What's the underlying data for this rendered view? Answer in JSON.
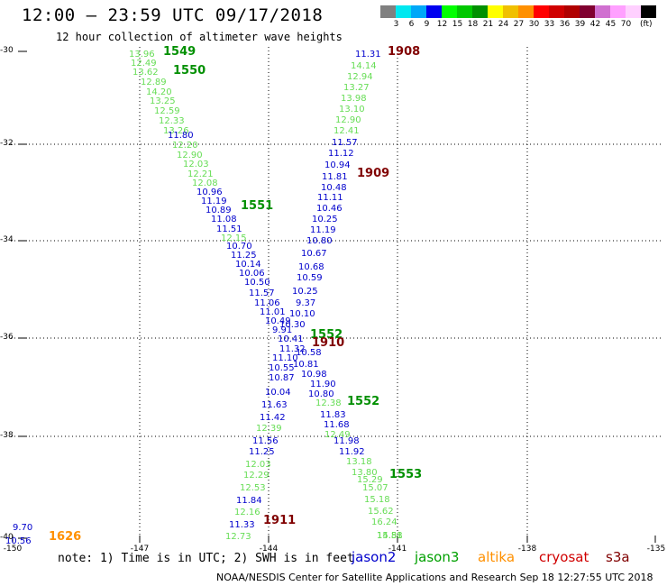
{
  "header": {
    "title": "12:00 – 23:59 UTC 09/17/2018",
    "subtitle": "12 hour collection of altimeter wave heights"
  },
  "color_scale": {
    "colors": [
      "#808080",
      "#00e8f0",
      "#00a8f8",
      "#0000f0",
      "#00ff00",
      "#00c800",
      "#009000",
      "#ffff00",
      "#f0c000",
      "#ff9000",
      "#ff0000",
      "#d00000",
      "#b00000",
      "#800030",
      "#d070d0",
      "#ffa0ff",
      "#ffd0ff",
      "#000000"
    ],
    "labels": [
      "3",
      "6",
      "9",
      "12",
      "15",
      "18",
      "21",
      "24",
      "27",
      "30",
      "33",
      "36",
      "39",
      "42",
      "45",
      "70"
    ],
    "unit": "(ft)"
  },
  "axes": {
    "lat_labels": [
      "-30",
      "-32",
      "-34",
      "-36",
      "-38",
      "-40"
    ],
    "lon_labels": [
      "-150",
      "-147",
      "-144",
      "-141",
      "-138",
      "-135"
    ]
  },
  "observations": [
    {
      "v": "13.96",
      "c": "#66dd55"
    },
    {
      "v": "12.49",
      "c": "#66dd55"
    },
    {
      "v": "13.62",
      "c": "#66dd55"
    },
    {
      "v": "12.89",
      "c": "#66dd55"
    },
    {
      "v": "14.20",
      "c": "#66dd55"
    },
    {
      "v": "13.25",
      "c": "#66dd55"
    },
    {
      "v": "12.59",
      "c": "#66dd55"
    },
    {
      "v": "12.33",
      "c": "#66dd55"
    },
    {
      "v": "13.26",
      "c": "#66dd55"
    },
    {
      "v": "11.80",
      "c": "#0000cc"
    },
    {
      "v": "12.20",
      "c": "#66dd55"
    },
    {
      "v": "12.90",
      "c": "#66dd55"
    },
    {
      "v": "12.03",
      "c": "#66dd55"
    },
    {
      "v": "12.21",
      "c": "#66dd55"
    },
    {
      "v": "12.08",
      "c": "#66dd55"
    },
    {
      "v": "10.96",
      "c": "#0000cc"
    },
    {
      "v": "11.19",
      "c": "#0000cc"
    },
    {
      "v": "10.89",
      "c": "#0000cc"
    },
    {
      "v": "11.08",
      "c": "#0000cc"
    },
    {
      "v": "11.51",
      "c": "#0000cc"
    },
    {
      "v": "12.15",
      "c": "#66dd55"
    },
    {
      "v": "10.70",
      "c": "#0000cc"
    },
    {
      "v": "11.25",
      "c": "#0000cc"
    },
    {
      "v": "10.14",
      "c": "#0000cc"
    },
    {
      "v": "10.06",
      "c": "#0000cc"
    },
    {
      "v": "10.50",
      "c": "#0000cc"
    },
    {
      "v": "11.57",
      "c": "#0000cc"
    },
    {
      "v": "11.06",
      "c": "#0000cc"
    },
    {
      "v": "11.01",
      "c": "#0000cc"
    },
    {
      "v": "10.49",
      "c": "#0000cc"
    },
    {
      "v": "9.91",
      "c": "#0000cc"
    },
    {
      "v": "10.41",
      "c": "#0000cc"
    },
    {
      "v": "11.32",
      "c": "#0000cc"
    },
    {
      "v": "11.10",
      "c": "#0000cc"
    },
    {
      "v": "10.55",
      "c": "#0000cc"
    },
    {
      "v": "10.87",
      "c": "#0000cc"
    },
    {
      "v": "10.04",
      "c": "#0000cc"
    },
    {
      "v": "11.63",
      "c": "#0000cc"
    },
    {
      "v": "11.42",
      "c": "#0000cc"
    },
    {
      "v": "12.39",
      "c": "#66dd55"
    },
    {
      "v": "11.56",
      "c": "#0000cc"
    },
    {
      "v": "11.25",
      "c": "#0000cc"
    },
    {
      "v": "12.03",
      "c": "#66dd55"
    },
    {
      "v": "12.29",
      "c": "#66dd55"
    },
    {
      "v": "12.53",
      "c": "#66dd55"
    },
    {
      "v": "11.84",
      "c": "#0000cc"
    },
    {
      "v": "12.16",
      "c": "#66dd55"
    },
    {
      "v": "11.33",
      "c": "#0000cc"
    },
    {
      "v": "12.73",
      "c": "#66dd55"
    },
    {
      "v": "9.70",
      "c": "#0000cc"
    },
    {
      "v": "10.56",
      "c": "#0000cc"
    },
    {
      "v": "11.31",
      "c": "#0000cc"
    },
    {
      "v": "14.14",
      "c": "#66dd55"
    },
    {
      "v": "12.94",
      "c": "#66dd55"
    },
    {
      "v": "13.27",
      "c": "#66dd55"
    },
    {
      "v": "13.98",
      "c": "#66dd55"
    },
    {
      "v": "13.10",
      "c": "#66dd55"
    },
    {
      "v": "12.90",
      "c": "#66dd55"
    },
    {
      "v": "12.41",
      "c": "#66dd55"
    },
    {
      "v": "11.57",
      "c": "#0000cc"
    },
    {
      "v": "11.12",
      "c": "#0000cc"
    },
    {
      "v": "10.94",
      "c": "#0000cc"
    },
    {
      "v": "11.81",
      "c": "#0000cc"
    },
    {
      "v": "10.48",
      "c": "#0000cc"
    },
    {
      "v": "11.11",
      "c": "#0000cc"
    },
    {
      "v": "10.46",
      "c": "#0000cc"
    },
    {
      "v": "10.25",
      "c": "#0000cc"
    },
    {
      "v": "11.19",
      "c": "#0000cc"
    },
    {
      "v": "10.80",
      "c": "#0000cc"
    },
    {
      "v": "10.67",
      "c": "#0000cc"
    },
    {
      "v": "10.68",
      "c": "#0000cc"
    },
    {
      "v": "10.59",
      "c": "#0000cc"
    },
    {
      "v": "10.25",
      "c": "#0000cc"
    },
    {
      "v": "9.37",
      "c": "#0000cc"
    },
    {
      "v": "10.10",
      "c": "#0000cc"
    },
    {
      "v": "10.30",
      "c": "#0000cc"
    },
    {
      "v": "10.58",
      "c": "#0000cc"
    },
    {
      "v": "10.81",
      "c": "#0000cc"
    },
    {
      "v": "10.98",
      "c": "#0000cc"
    },
    {
      "v": "11.90",
      "c": "#0000cc"
    },
    {
      "v": "10.80",
      "c": "#0000cc"
    },
    {
      "v": "12.38",
      "c": "#66dd55"
    },
    {
      "v": "11.83",
      "c": "#0000cc"
    },
    {
      "v": "11.68",
      "c": "#0000cc"
    },
    {
      "v": "12.49",
      "c": "#66dd55"
    },
    {
      "v": "11.98",
      "c": "#0000cc"
    },
    {
      "v": "11.92",
      "c": "#0000cc"
    },
    {
      "v": "13.18",
      "c": "#66dd55"
    },
    {
      "v": "13.80",
      "c": "#66dd55"
    },
    {
      "v": "15.29",
      "c": "#66dd55"
    },
    {
      "v": "15.07",
      "c": "#66dd55"
    },
    {
      "v": "15.18",
      "c": "#66dd55"
    },
    {
      "v": "15.62",
      "c": "#66dd55"
    },
    {
      "v": "16.24",
      "c": "#66dd55"
    },
    {
      "v": "15.51",
      "c": "#66dd55"
    },
    {
      "v": "14.88",
      "c": "#66dd55"
    }
  ],
  "pass_labels": [
    {
      "t": "1549",
      "c": "#009000"
    },
    {
      "t": "1550",
      "c": "#009000"
    },
    {
      "t": "1551",
      "c": "#009000"
    },
    {
      "t": "1552",
      "c": "#009000"
    },
    {
      "t": "1552",
      "c": "#009000"
    },
    {
      "t": "1553",
      "c": "#009000"
    },
    {
      "t": "1908",
      "c": "#800000"
    },
    {
      "t": "1909",
      "c": "#800000"
    },
    {
      "t": "1910",
      "c": "#800000"
    },
    {
      "t": "1911",
      "c": "#800000"
    },
    {
      "t": "1626",
      "c": "#ff9000"
    }
  ],
  "footer": {
    "note": "note: 1) Time is in UTC; 2) SWH is in feet",
    "satellites": [
      {
        "name": "jason2",
        "color": "#0000cc"
      },
      {
        "name": "jason3",
        "color": "#00a000"
      },
      {
        "name": "altika",
        "color": "#ff9000"
      },
      {
        "name": "cryosat",
        "color": "#d00000"
      },
      {
        "name": "s3a",
        "color": "#800000"
      }
    ],
    "credit": "NOAA/NESDIS Center for Satellite Applications and Research   Sep 18 12:27:55 UTC 2018"
  }
}
